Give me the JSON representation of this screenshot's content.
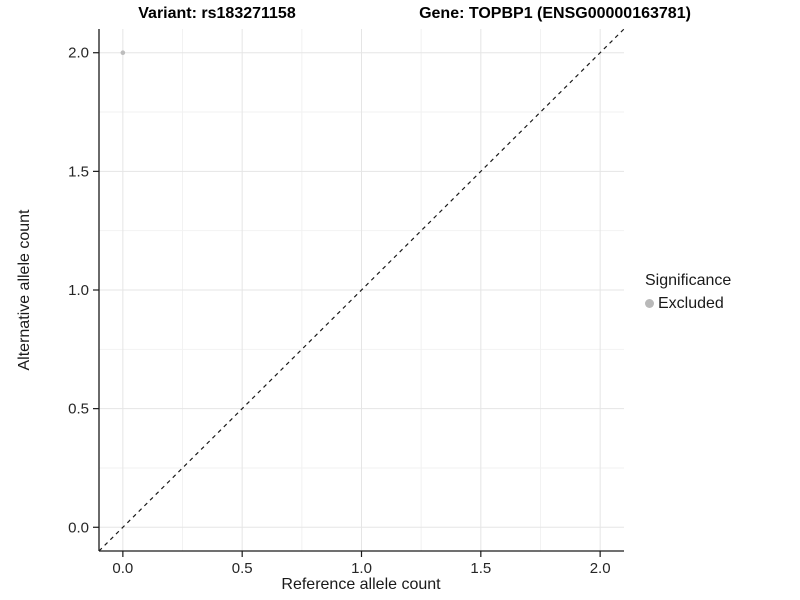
{
  "header": {
    "variant_title": "Variant: rs183271158",
    "gene_title": "Gene: TOPBP1 (ENSG00000163781)"
  },
  "axes": {
    "x_label": "Reference allele count",
    "y_label": "Alternative allele count"
  },
  "legend": {
    "title": "Significance",
    "items": [
      {
        "label": "Excluded",
        "color": "#b9b9b9"
      }
    ]
  },
  "colors": {
    "background": "#ffffff",
    "grid_major": "#e5e5e5",
    "grid_minor": "#f2f2f2",
    "axis_line": "#1a1a1a",
    "tick_label": "#262626",
    "reference_line": "#1a1a1a",
    "point": "#bdbdbd"
  },
  "chart_data": {
    "type": "scatter",
    "title": "Variant: rs183271158 / Gene: TOPBP1 (ENSG00000163781)",
    "xlabel": "Reference allele count",
    "ylabel": "Alternative allele count",
    "xlim": [
      -0.1,
      2.1
    ],
    "ylim": [
      -0.1,
      2.1
    ],
    "x_ticks": [
      0.0,
      0.5,
      1.0,
      1.5,
      2.0
    ],
    "x_tick_labels": [
      "0.0",
      "0.5",
      "1.0",
      "1.5",
      "2.0"
    ],
    "y_ticks": [
      0.0,
      0.5,
      1.0,
      1.5,
      2.0
    ],
    "y_tick_labels": [
      "0.0",
      "0.5",
      "1.0",
      "1.5",
      "2.0"
    ],
    "x_minor_ticks": [
      0.25,
      0.75,
      1.25,
      1.75
    ],
    "y_minor_ticks": [
      0.25,
      0.75,
      1.25,
      1.75
    ],
    "grid": true,
    "legend_position": "right",
    "series": [
      {
        "name": "Excluded",
        "color": "#bdbdbd",
        "marker": "circle",
        "points": [
          {
            "x": 0.0,
            "y": 2.0
          }
        ]
      }
    ],
    "reference_line": {
      "slope": 1,
      "intercept": 0,
      "style": "dashed",
      "from": [
        -0.1,
        -0.1
      ],
      "to": [
        2.1,
        2.1
      ]
    }
  }
}
